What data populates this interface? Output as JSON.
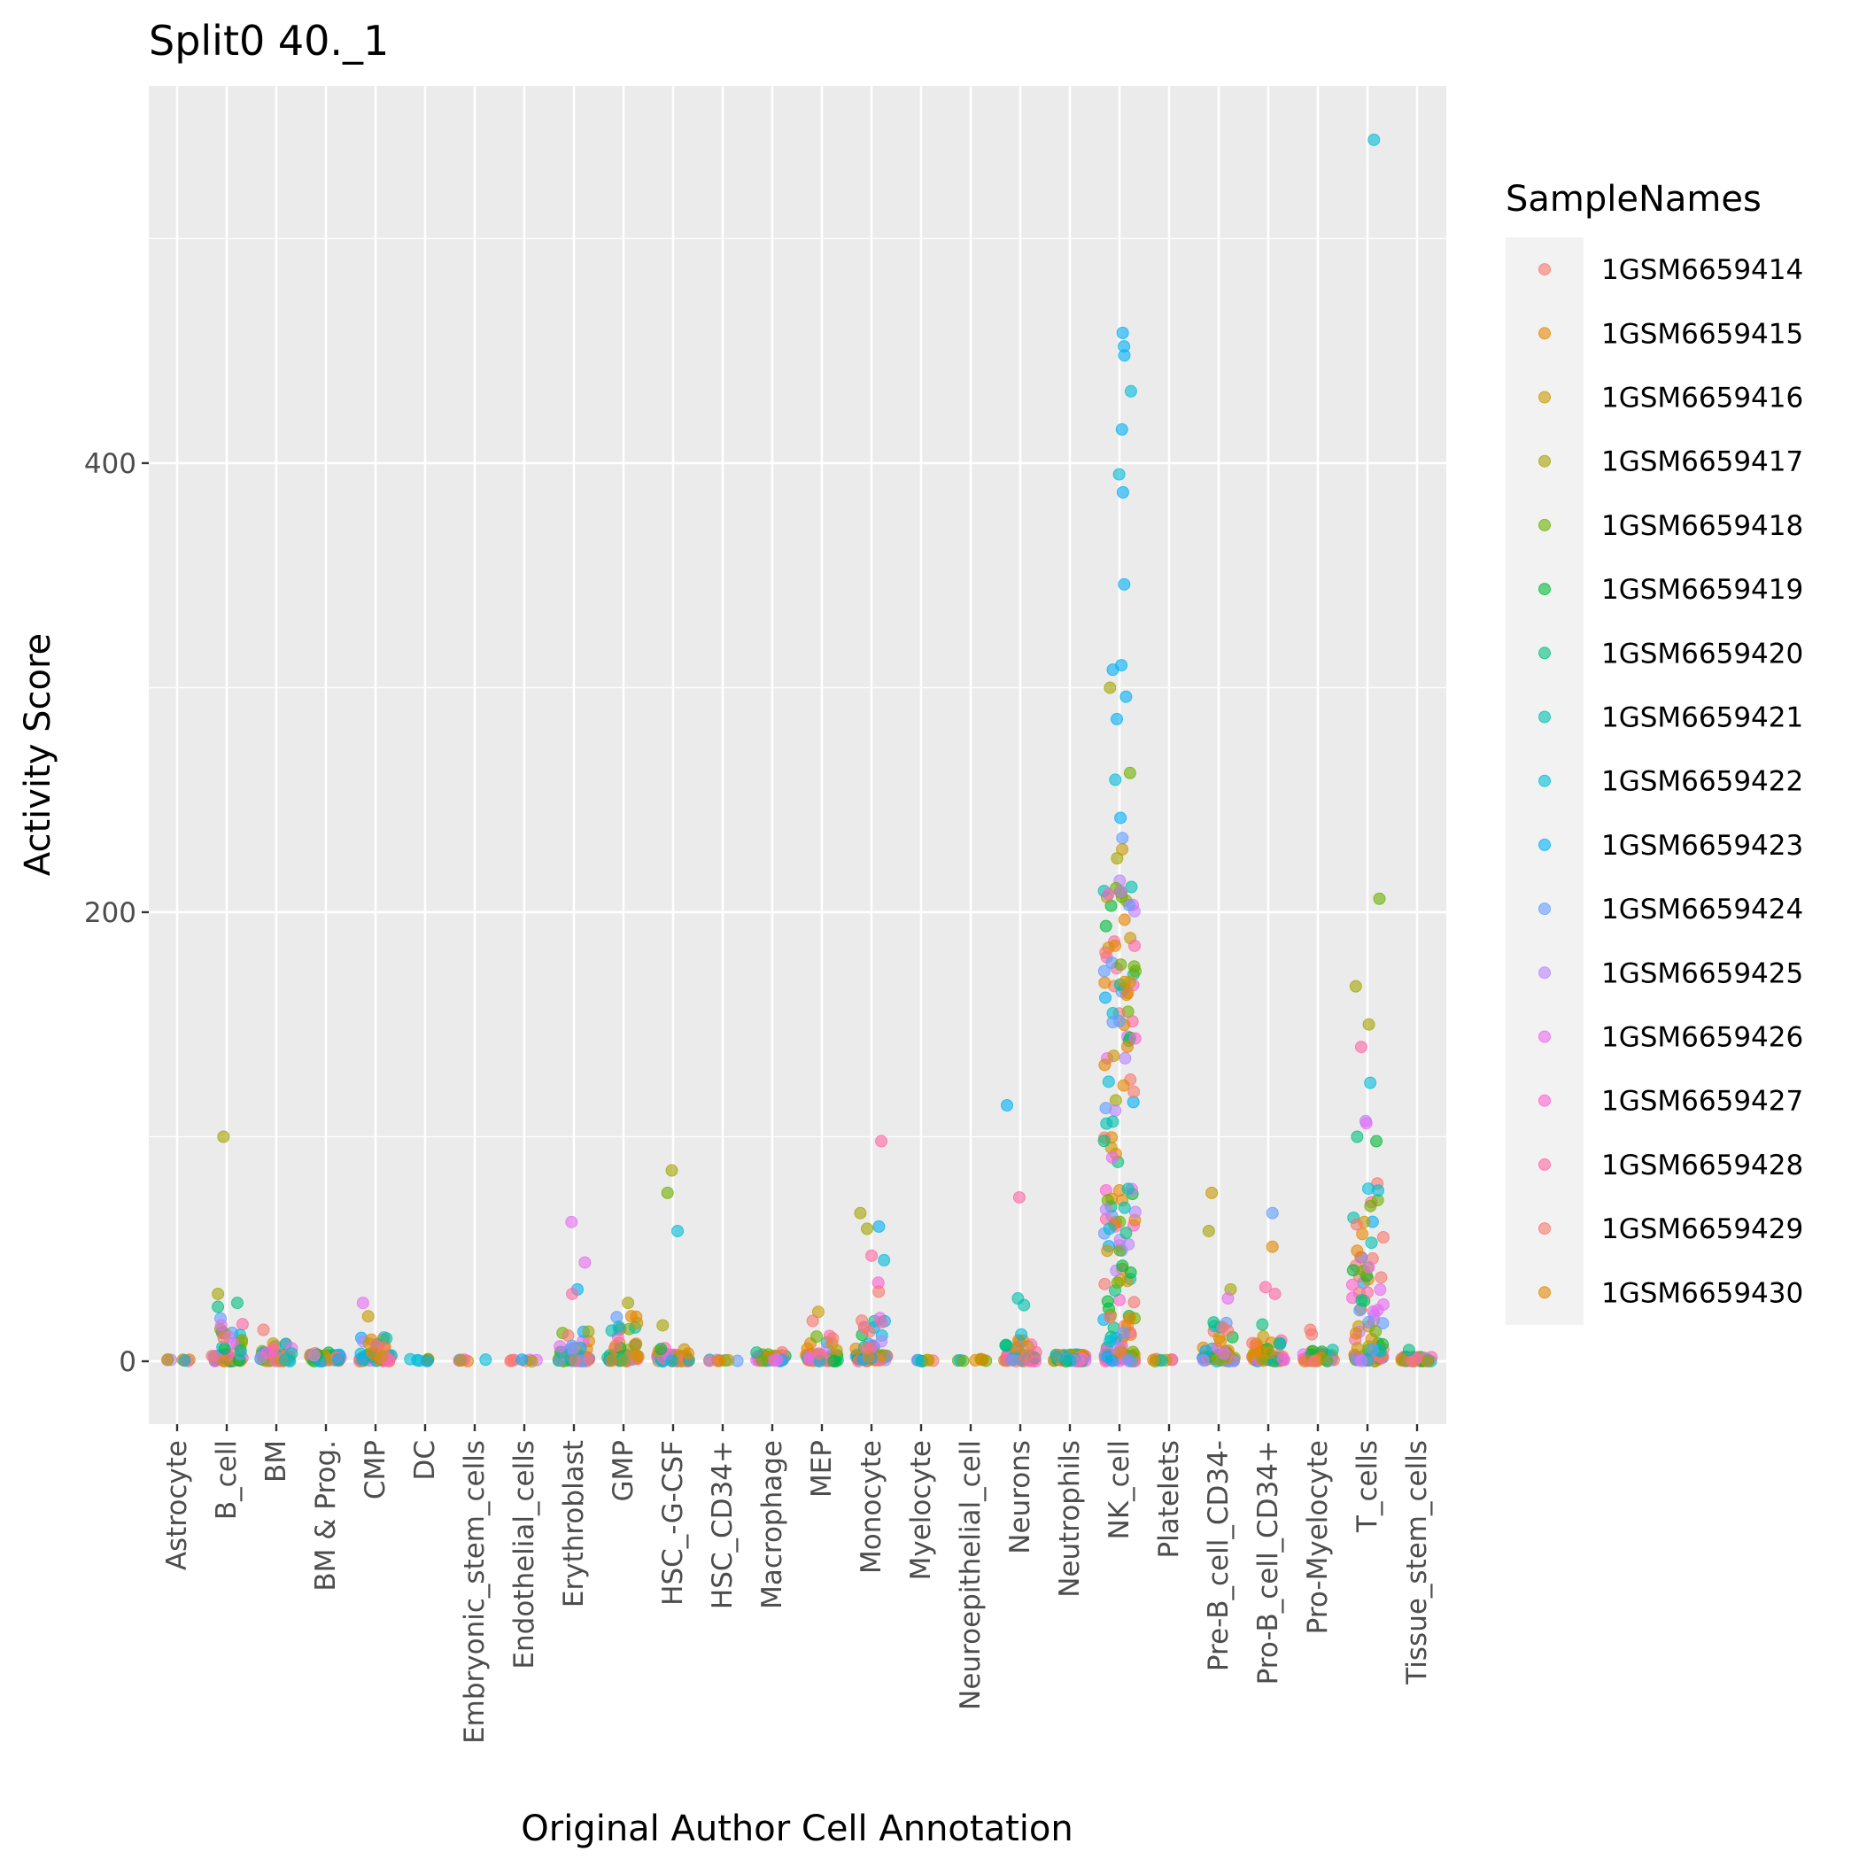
{
  "chart_data": {
    "type": "scatter",
    "title": "Split0 40._1",
    "xlabel": "Original Author Cell Annotation",
    "ylabel": "Activity Score",
    "ylim": [
      -28,
      568
    ],
    "y_ticks": [
      0,
      200,
      400
    ],
    "grid": true,
    "legend_position": "right",
    "legend_title": "SampleNames",
    "categories": [
      "Astrocyte",
      "B_cell",
      "BM",
      "BM & Prog.",
      "CMP",
      "DC",
      "Embryonic_stem_cells",
      "Endothelial_cells",
      "Erythroblast",
      "GMP",
      "HSC_-G-CSF",
      "HSC_CD34+",
      "Macrophage",
      "MEP",
      "Monocyte",
      "Myelocyte",
      "Neuroepithelial_cell",
      "Neurons",
      "Neutrophils",
      "NK_cell",
      "Platelets",
      "Pre-B_cell_CD34-",
      "Pro-B_cell_CD34+",
      "Pro-Myelocyte",
      "T_cells",
      "Tissue_stem_cells"
    ],
    "series": [
      {
        "name": "1GSM6659414",
        "color": "#F8766D"
      },
      {
        "name": "1GSM6659415",
        "color": "#E58700"
      },
      {
        "name": "1GSM6659416",
        "color": "#C99800"
      },
      {
        "name": "1GSM6659417",
        "color": "#A3A500"
      },
      {
        "name": "1GSM6659418",
        "color": "#6BB100"
      },
      {
        "name": "1GSM6659419",
        "color": "#00BA38"
      },
      {
        "name": "1GSM6659420",
        "color": "#00BF7D"
      },
      {
        "name": "1GSM6659421",
        "color": "#00C0AF"
      },
      {
        "name": "1GSM6659422",
        "color": "#00BCD8"
      },
      {
        "name": "1GSM6659423",
        "color": "#00B0F6"
      },
      {
        "name": "1GSM6659424",
        "color": "#619CFF"
      },
      {
        "name": "1GSM6659425",
        "color": "#B983FF"
      },
      {
        "name": "1GSM6659426",
        "color": "#E76BF3"
      },
      {
        "name": "1GSM6659427",
        "color": "#FD61D1"
      },
      {
        "name": "1GSM6659428",
        "color": "#FF67A4"
      },
      {
        "name": "1GSM6659429",
        "color": "#F8766D"
      },
      {
        "name": "1GSM6659430",
        "color": "#E58700"
      }
    ],
    "category_summary": [
      {
        "category": "Astrocyte",
        "max": 1,
        "dense_top": 0,
        "notable": []
      },
      {
        "category": "B_cell",
        "max": 100,
        "dense_top": 25,
        "notable": [
          [
            100,
            "1GSM6659417"
          ],
          [
            30,
            "1GSM6659417"
          ],
          [
            26,
            "1GSM6659420"
          ],
          [
            16,
            "1GSM6659426"
          ]
        ]
      },
      {
        "category": "BM",
        "max": 14,
        "dense_top": 8,
        "notable": [
          [
            14,
            "1GSM6659414"
          ]
        ]
      },
      {
        "category": "BM & Prog.",
        "max": 6,
        "dense_top": 4,
        "notable": []
      },
      {
        "category": "CMP",
        "max": 26,
        "dense_top": 12,
        "notable": [
          [
            26,
            "1GSM6659426"
          ],
          [
            20,
            "1GSM6659416"
          ]
        ]
      },
      {
        "category": "DC",
        "max": 1,
        "dense_top": 0,
        "notable": []
      },
      {
        "category": "Embryonic_stem_cells",
        "max": 1,
        "dense_top": 0,
        "notable": []
      },
      {
        "category": "Endothelial_cells",
        "max": 1,
        "dense_top": 0,
        "notable": []
      },
      {
        "category": "Erythroblast",
        "max": 62,
        "dense_top": 14,
        "notable": [
          [
            62,
            "1GSM6659426"
          ],
          [
            44,
            "1GSM6659426"
          ],
          [
            32,
            "1GSM6659423"
          ],
          [
            30,
            "1GSM6659428"
          ]
        ]
      },
      {
        "category": "GMP",
        "max": 26,
        "dense_top": 22,
        "notable": [
          [
            26,
            "1GSM6659417"
          ]
        ]
      },
      {
        "category": "HSC_-G-CSF",
        "max": 85,
        "dense_top": 6,
        "notable": [
          [
            85,
            "1GSM6659417"
          ],
          [
            75,
            "1GSM6659418"
          ],
          [
            58,
            "1GSM6659422"
          ],
          [
            16,
            "1GSM6659417"
          ]
        ]
      },
      {
        "category": "HSC_CD34+",
        "max": 1,
        "dense_top": 0,
        "notable": []
      },
      {
        "category": "Macrophage",
        "max": 6,
        "dense_top": 4,
        "notable": []
      },
      {
        "category": "MEP",
        "max": 22,
        "dense_top": 12,
        "notable": [
          [
            22,
            "1GSM6659416"
          ],
          [
            18,
            "1GSM6659429"
          ]
        ]
      },
      {
        "category": "Monocyte",
        "max": 98,
        "dense_top": 20,
        "notable": [
          [
            98,
            "1GSM6659428"
          ],
          [
            66,
            "1GSM6659417"
          ],
          [
            60,
            "1GSM6659423"
          ],
          [
            59,
            "1GSM6659417"
          ],
          [
            47,
            "1GSM6659428"
          ],
          [
            45,
            "1GSM6659422"
          ],
          [
            35,
            "1GSM6659427"
          ],
          [
            31,
            "1GSM6659414"
          ]
        ]
      },
      {
        "category": "Myelocyte",
        "max": 1,
        "dense_top": 0,
        "notable": []
      },
      {
        "category": "Neuroepithelial_cell",
        "max": 1,
        "dense_top": 0,
        "notable": []
      },
      {
        "category": "Neurons",
        "max": 114,
        "dense_top": 12,
        "notable": [
          [
            114,
            "1GSM6659423"
          ],
          [
            73,
            "1GSM6659428"
          ],
          [
            28,
            "1GSM6659421"
          ],
          [
            25,
            "1GSM6659421"
          ]
        ]
      },
      {
        "category": "Neutrophils",
        "max": 6,
        "dense_top": 3,
        "notable": []
      },
      {
        "category": "NK_cell",
        "max": 458,
        "dense_top": 220,
        "notable": [
          [
            458,
            "1GSM6659423"
          ],
          [
            452,
            "1GSM6659423"
          ],
          [
            448,
            "1GSM6659423"
          ],
          [
            432,
            "1GSM6659422"
          ],
          [
            415,
            "1GSM6659423"
          ],
          [
            395,
            "1GSM6659422"
          ],
          [
            387,
            "1GSM6659423"
          ],
          [
            346,
            "1GSM6659423"
          ],
          [
            310,
            "1GSM6659423"
          ],
          [
            308,
            "1GSM6659423"
          ],
          [
            300,
            "1GSM6659417"
          ],
          [
            296,
            "1GSM6659423"
          ],
          [
            286,
            "1GSM6659423"
          ],
          [
            262,
            "1GSM6659418"
          ],
          [
            259,
            "1GSM6659422"
          ],
          [
            242,
            "1GSM6659423"
          ],
          [
            233,
            "1GSM6659424"
          ],
          [
            228,
            "1GSM6659416"
          ],
          [
            224,
            "1GSM6659417"
          ]
        ]
      },
      {
        "category": "Platelets",
        "max": 1,
        "dense_top": 0,
        "notable": []
      },
      {
        "category": "Pre-B_cell_CD34-",
        "max": 75,
        "dense_top": 18,
        "notable": [
          [
            75,
            "1GSM6659416"
          ],
          [
            58,
            "1GSM6659417"
          ],
          [
            32,
            "1GSM6659417"
          ],
          [
            28,
            "1GSM6659426"
          ]
        ]
      },
      {
        "category": "Pro-B_cell_CD34+",
        "max": 66,
        "dense_top": 20,
        "notable": [
          [
            66,
            "1GSM6659424"
          ],
          [
            51,
            "1GSM6659415"
          ],
          [
            33,
            "1GSM6659428"
          ],
          [
            30,
            "1GSM6659428"
          ]
        ]
      },
      {
        "category": "Pro-Myelocyte",
        "max": 14,
        "dense_top": 6,
        "notable": [
          [
            14,
            "1GSM6659414"
          ],
          [
            12,
            "1GSM6659414"
          ]
        ]
      },
      {
        "category": "T_cells",
        "max": 544,
        "dense_top": 80,
        "notable": [
          [
            544,
            "1GSM6659422"
          ],
          [
            206,
            "1GSM6659418"
          ],
          [
            167,
            "1GSM6659417"
          ],
          [
            150,
            "1GSM6659417"
          ],
          [
            140,
            "1GSM6659428"
          ],
          [
            124,
            "1GSM6659422"
          ],
          [
            107,
            "1GSM6659425"
          ],
          [
            106,
            "1GSM6659426"
          ],
          [
            100,
            "1GSM6659420"
          ],
          [
            98,
            "1GSM6659419"
          ]
        ]
      },
      {
        "category": "Tissue_stem_cells",
        "max": 5,
        "dense_top": 2,
        "notable": [
          [
            5,
            "1GSM6659420"
          ]
        ]
      }
    ]
  }
}
